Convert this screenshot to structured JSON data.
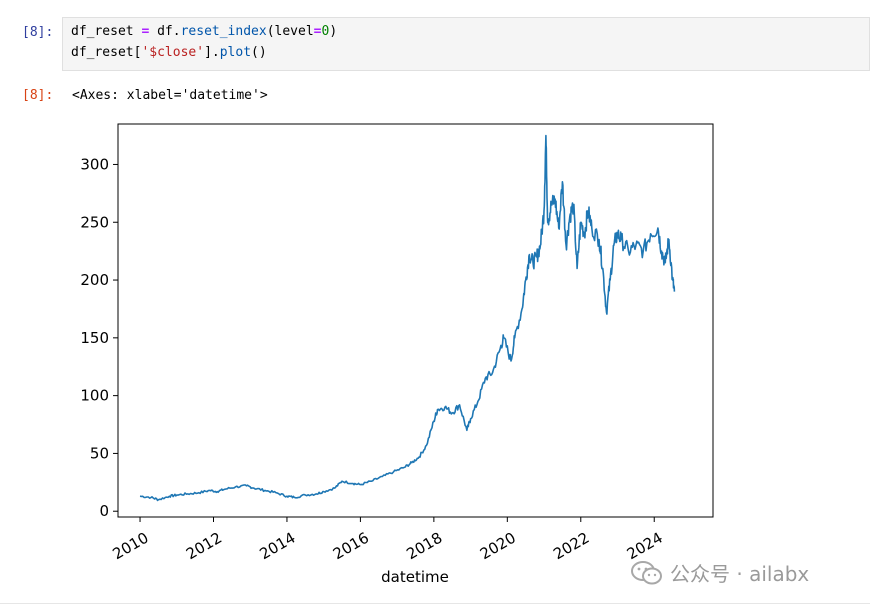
{
  "input_cell": {
    "prompt": "[8]:",
    "line1": {
      "var": "df_reset",
      "op": "=",
      "obj": "df.",
      "method": "reset_index",
      "open": "(level",
      "eq": "=",
      "num": "0",
      "close": ")"
    },
    "line2": {
      "pre": "df_reset[",
      "str": "'$close'",
      "mid": "].",
      "method": "plot",
      "post": "()"
    }
  },
  "output_cell": {
    "prompt": "[8]:",
    "text": "<Axes: xlabel='datetime'>"
  },
  "chart_data": {
    "type": "line",
    "xlabel": "datetime",
    "ylabel": "",
    "title": "",
    "xlim": [
      2009.4,
      2025.6
    ],
    "ylim": [
      -5,
      335
    ],
    "xticks": [
      "2010",
      "2012",
      "2014",
      "2016",
      "2018",
      "2020",
      "2022",
      "2024"
    ],
    "yticks": [
      "0",
      "50",
      "100",
      "150",
      "200",
      "250",
      "300"
    ],
    "line_color": "#1f77b4",
    "series": [
      {
        "x": [
          2010.0,
          2010.3,
          2010.5,
          2010.8,
          2011.0,
          2011.3,
          2011.6,
          2011.9,
          2012.1,
          2012.3,
          2012.6,
          2012.9,
          2013.1,
          2013.4,
          2013.7,
          2014.0,
          2014.2,
          2014.5,
          2014.8,
          2015.0,
          2015.3,
          2015.5,
          2015.8,
          2016.0,
          2016.3,
          2016.6,
          2016.9,
          2017.2,
          2017.4,
          2017.6,
          2017.8,
          2018.0,
          2018.1,
          2018.3,
          2018.5,
          2018.7,
          2018.9,
          2019.0,
          2019.2,
          2019.4,
          2019.6,
          2019.8,
          2019.9,
          2020.1,
          2020.2,
          2020.4,
          2020.5,
          2020.6,
          2020.7,
          2020.8,
          2020.9,
          2021.0,
          2021.05,
          2021.1,
          2021.2,
          2021.3,
          2021.4,
          2021.5,
          2021.6,
          2021.7,
          2021.8,
          2021.9,
          2022.0,
          2022.1,
          2022.2,
          2022.3,
          2022.5,
          2022.6,
          2022.7,
          2022.8,
          2022.9,
          2023.0,
          2023.1,
          2023.3,
          2023.5,
          2023.7,
          2023.9,
          2024.1,
          2024.2,
          2024.3,
          2024.4,
          2024.5,
          2024.55
        ],
        "y": [
          13,
          12,
          10,
          13,
          14,
          15,
          16,
          18,
          17,
          19,
          21,
          22,
          20,
          18,
          16,
          13,
          12,
          14,
          15,
          17,
          20,
          26,
          24,
          23,
          26,
          30,
          34,
          38,
          42,
          47,
          57,
          78,
          88,
          90,
          85,
          92,
          70,
          80,
          95,
          115,
          120,
          140,
          150,
          130,
          150,
          175,
          200,
          222,
          215,
          220,
          230,
          260,
          325,
          250,
          265,
          270,
          245,
          285,
          230,
          255,
          265,
          210,
          250,
          240,
          260,
          245,
          235,
          210,
          172,
          200,
          230,
          240,
          235,
          225,
          230,
          225,
          240,
          245,
          225,
          215,
          235,
          200,
          190
        ]
      }
    ]
  },
  "watermark": {
    "text": "公众号 · ailabx"
  }
}
